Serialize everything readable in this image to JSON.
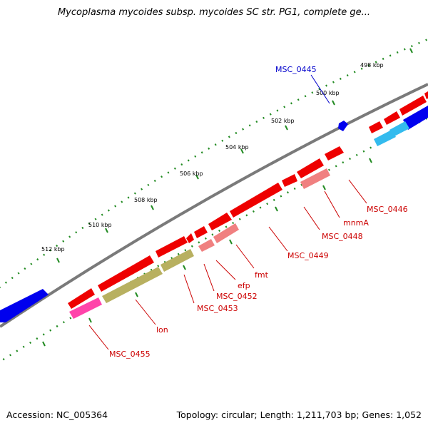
{
  "title": "Mycoplasma mycoides subsp. mycoides SC str. PG1, complete ge...",
  "footer": {
    "accession": "Accession: NC_005364",
    "summary": "Topology: circular; Length: 1,211,703 bp; Genes: 1,052"
  },
  "colors": {
    "backbone": "#808080",
    "forward_gene": "#ff0000",
    "reverse_gene": "#0000ff",
    "light_forward": "#f08080",
    "magenta": "#ff44aa",
    "olive": "#b8b060",
    "cyan": "#33bbee",
    "tick": "#228b22",
    "label_red": "#cc0000",
    "label_blue": "#0000cc"
  },
  "kbp_labels": [
    "498 kbp",
    "500 kbp",
    "502 kbp",
    "504 kbp",
    "506 kbp",
    "508 kbp",
    "510 kbp",
    "512 kbp"
  ],
  "gene_labels": [
    {
      "text": "MSC_0445",
      "color": "blue"
    },
    {
      "text": "MSC_0446",
      "color": "red"
    },
    {
      "text": "mnmA",
      "color": "red"
    },
    {
      "text": "MSC_0448",
      "color": "red"
    },
    {
      "text": "MSC_0449",
      "color": "red"
    },
    {
      "text": "fmt",
      "color": "red"
    },
    {
      "text": "efp",
      "color": "red"
    },
    {
      "text": "MSC_0452",
      "color": "red"
    },
    {
      "text": "MSC_0453",
      "color": "red"
    },
    {
      "text": "lon",
      "color": "red"
    },
    {
      "text": "MSC_0455",
      "color": "red"
    }
  ]
}
